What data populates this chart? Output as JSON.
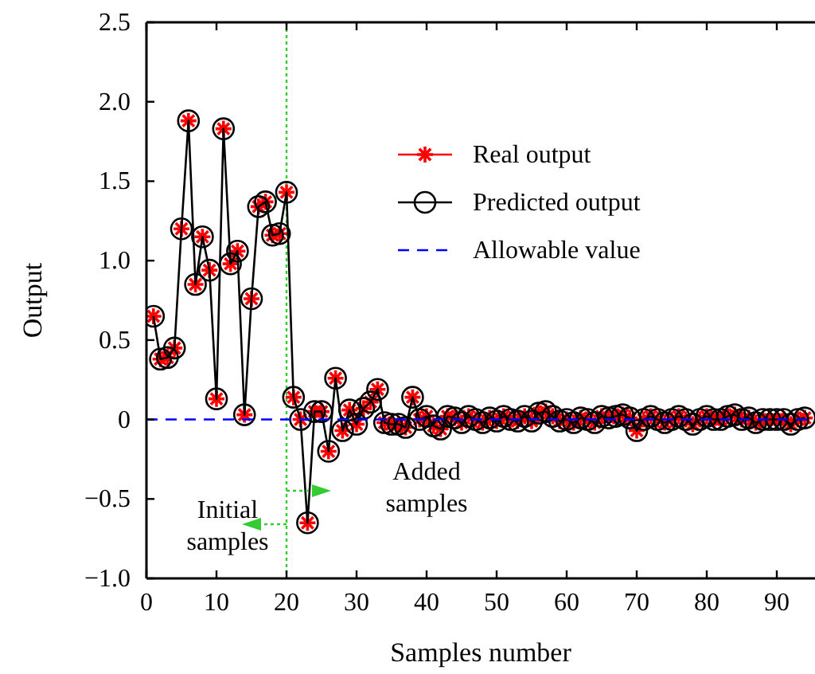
{
  "chart_data": {
    "type": "line",
    "xlabel": "Samples number",
    "ylabel": "Output",
    "xlim": [
      0,
      95
    ],
    "ylim": [
      -1.0,
      2.5
    ],
    "xticks": [
      0,
      10,
      20,
      30,
      40,
      50,
      60,
      70,
      80,
      90
    ],
    "yticks": [
      {
        "value": -1,
        "label": "−1.0"
      },
      {
        "value": -0.5,
        "label": "−0.5"
      },
      0,
      {
        "value": 0.5,
        "label": "0.5"
      },
      {
        "value": 1,
        "label": "1.0"
      },
      {
        "value": 1.5,
        "label": "1.5"
      },
      {
        "value": 2,
        "label": "2.0"
      },
      {
        "value": 2.5,
        "label": "2.5"
      }
    ],
    "x": [
      1,
      2,
      3,
      4,
      5,
      6,
      7,
      8,
      9,
      10,
      11,
      12,
      13,
      14,
      15,
      16,
      17,
      18,
      19,
      20,
      21,
      22,
      23,
      24,
      25,
      26,
      27,
      28,
      29,
      30,
      31,
      32,
      33,
      34,
      35,
      36,
      37,
      38,
      39,
      40,
      41,
      42,
      43,
      44,
      45,
      46,
      47,
      48,
      49,
      50,
      51,
      52,
      53,
      54,
      55,
      56,
      57,
      58,
      59,
      60,
      61,
      62,
      63,
      64,
      65,
      66,
      67,
      68,
      69,
      70,
      71,
      72,
      73,
      74,
      75,
      76,
      77,
      78,
      79,
      80,
      81,
      82,
      83,
      84,
      85,
      86,
      87,
      88,
      89,
      90,
      91,
      92,
      93,
      94
    ],
    "series": [
      {
        "name": "Real output",
        "type": "scatter",
        "color": "#ff0000",
        "marker": "cross",
        "values": [
          0.65,
          0.38,
          0.39,
          0.45,
          1.2,
          1.88,
          0.85,
          1.15,
          0.94,
          0.13,
          1.83,
          0.98,
          1.06,
          0.03,
          0.76,
          1.34,
          1.37,
          1.16,
          1.17,
          1.43,
          0.14,
          0.0,
          -0.65,
          0.05,
          0.05,
          -0.2,
          0.26,
          -0.07,
          0.06,
          -0.03,
          0.07,
          0.11,
          0.19,
          -0.02,
          -0.03,
          -0.03,
          -0.05,
          0.14,
          0.0,
          0.02,
          -0.04,
          -0.06,
          0.02,
          0.01,
          -0.02,
          0.02,
          0.0,
          -0.02,
          0.01,
          -0.01,
          0.02,
          0.0,
          -0.01,
          0.02,
          -0.01,
          0.04,
          0.05,
          0.02,
          -0.01,
          0.0,
          -0.02,
          0.01,
          0.0,
          -0.02,
          0.02,
          0.01,
          0.02,
          0.03,
          0.01,
          -0.07,
          0.0,
          0.02,
          0.0,
          -0.02,
          0.0,
          0.02,
          0.0,
          -0.03,
          0.0,
          0.02,
          0.0,
          0.0,
          0.02,
          0.03,
          0.0,
          0.01,
          -0.02,
          0.0,
          0.0,
          0.0,
          0.0,
          -0.03,
          0.0,
          0.01
        ]
      },
      {
        "name": "Predicted output",
        "color": "#000000",
        "marker": "circle",
        "values": [
          0.65,
          0.38,
          0.39,
          0.45,
          1.2,
          1.88,
          0.85,
          1.15,
          0.94,
          0.13,
          1.83,
          0.98,
          1.06,
          0.03,
          0.76,
          1.34,
          1.37,
          1.16,
          1.17,
          1.43,
          0.14,
          0.0,
          -0.65,
          0.05,
          0.05,
          -0.2,
          0.26,
          -0.07,
          0.06,
          -0.03,
          0.07,
          0.11,
          0.19,
          -0.02,
          -0.03,
          -0.03,
          -0.05,
          0.14,
          0.0,
          0.02,
          -0.04,
          -0.06,
          0.02,
          0.01,
          -0.02,
          0.02,
          0.0,
          -0.02,
          0.01,
          -0.01,
          0.02,
          0.0,
          -0.01,
          0.02,
          -0.01,
          0.04,
          0.05,
          0.02,
          -0.01,
          0.0,
          -0.02,
          0.01,
          0.0,
          -0.02,
          0.02,
          0.01,
          0.02,
          0.03,
          0.01,
          -0.07,
          0.0,
          0.02,
          0.0,
          -0.02,
          0.0,
          0.02,
          0.0,
          -0.03,
          0.0,
          0.02,
          0.0,
          0.0,
          0.02,
          0.03,
          0.0,
          0.01,
          -0.02,
          0.0,
          0.0,
          0.0,
          0.0,
          -0.03,
          0.0,
          0.01
        ]
      },
      {
        "name": "Allowable value",
        "color": "#0000ff",
        "marker": "none",
        "line_style": "dashed",
        "x": [
          0,
          95
        ],
        "values": [
          0,
          0
        ]
      }
    ],
    "ref_lines": [
      {
        "axis": "x",
        "value": 20,
        "color": "#33cc33",
        "line_style": "dotted"
      }
    ],
    "annotations": [
      "Initial samples",
      "Added samples"
    ],
    "legend": "top right",
    "grid": false
  }
}
